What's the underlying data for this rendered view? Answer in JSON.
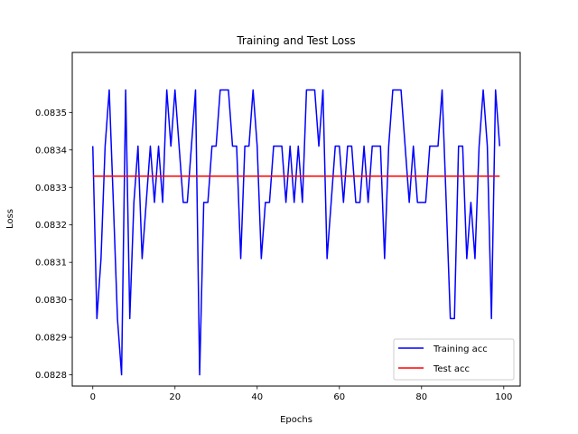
{
  "chart_data": {
    "type": "line",
    "title": "Training and Test Loss",
    "xlabel": "Epochs",
    "ylabel": "Loss",
    "xlim": [
      -5,
      104
    ],
    "ylim": [
      0.08277,
      0.08366
    ],
    "xticks": [
      0,
      20,
      40,
      60,
      80,
      100
    ],
    "xtick_labels": [
      "0",
      "20",
      "40",
      "60",
      "80",
      "100"
    ],
    "yticks": [
      0.0828,
      0.0829,
      0.083,
      0.0831,
      0.0832,
      0.0833,
      0.0834,
      0.0835
    ],
    "ytick_labels": [
      "0.0828",
      "0.0829",
      "0.0830",
      "0.0831",
      "0.0832",
      "0.0833",
      "0.0834",
      "0.0835"
    ],
    "grid": false,
    "legend_position": "lower-right",
    "x": [
      0,
      1,
      2,
      3,
      4,
      5,
      6,
      7,
      8,
      9,
      10,
      11,
      12,
      13,
      14,
      15,
      16,
      17,
      18,
      19,
      20,
      21,
      22,
      23,
      24,
      25,
      26,
      27,
      28,
      29,
      30,
      31,
      32,
      33,
      34,
      35,
      36,
      37,
      38,
      39,
      40,
      41,
      42,
      43,
      44,
      45,
      46,
      47,
      48,
      49,
      50,
      51,
      52,
      53,
      54,
      55,
      56,
      57,
      58,
      59,
      60,
      61,
      62,
      63,
      64,
      65,
      66,
      67,
      68,
      69,
      70,
      71,
      72,
      73,
      74,
      75,
      76,
      77,
      78,
      79,
      80,
      81,
      82,
      83,
      84,
      85,
      86,
      87,
      88,
      89,
      90,
      91,
      92,
      93,
      94,
      95,
      96,
      97,
      98,
      99
    ],
    "series": [
      {
        "name": "Training acc",
        "color": "#0000ff",
        "values": [
          0.08341,
          0.08295,
          0.08311,
          0.08341,
          0.08356,
          0.08326,
          0.08295,
          0.0828,
          0.08356,
          0.08295,
          0.08326,
          0.08341,
          0.08311,
          0.08326,
          0.08341,
          0.08326,
          0.08341,
          0.08326,
          0.08356,
          0.08341,
          0.08356,
          0.08341,
          0.08326,
          0.08326,
          0.08341,
          0.08356,
          0.0828,
          0.08326,
          0.08326,
          0.08341,
          0.08341,
          0.08356,
          0.08356,
          0.08356,
          0.08341,
          0.08341,
          0.08311,
          0.08341,
          0.08341,
          0.08356,
          0.08341,
          0.08311,
          0.08326,
          0.08326,
          0.08341,
          0.08341,
          0.08341,
          0.08326,
          0.08341,
          0.08326,
          0.08341,
          0.08326,
          0.08356,
          0.08356,
          0.08356,
          0.08341,
          0.08356,
          0.08311,
          0.08326,
          0.08341,
          0.08341,
          0.08326,
          0.08341,
          0.08341,
          0.08326,
          0.08326,
          0.08341,
          0.08326,
          0.08341,
          0.08341,
          0.08341,
          0.08311,
          0.08341,
          0.08356,
          0.08356,
          0.08356,
          0.08341,
          0.08326,
          0.08341,
          0.08326,
          0.08326,
          0.08326,
          0.08341,
          0.08341,
          0.08341,
          0.08356,
          0.08326,
          0.08295,
          0.08295,
          0.08341,
          0.08341,
          0.08311,
          0.08326,
          0.08311,
          0.08341,
          0.08356,
          0.08341,
          0.08295,
          0.08356,
          0.08341
        ]
      },
      {
        "name": "Test acc",
        "color": "#ff0000",
        "values": [
          0.08333,
          0.08333,
          0.08333,
          0.08333,
          0.08333,
          0.08333,
          0.08333,
          0.08333,
          0.08333,
          0.08333,
          0.08333,
          0.08333,
          0.08333,
          0.08333,
          0.08333,
          0.08333,
          0.08333,
          0.08333,
          0.08333,
          0.08333,
          0.08333,
          0.08333,
          0.08333,
          0.08333,
          0.08333,
          0.08333,
          0.08333,
          0.08333,
          0.08333,
          0.08333,
          0.08333,
          0.08333,
          0.08333,
          0.08333,
          0.08333,
          0.08333,
          0.08333,
          0.08333,
          0.08333,
          0.08333,
          0.08333,
          0.08333,
          0.08333,
          0.08333,
          0.08333,
          0.08333,
          0.08333,
          0.08333,
          0.08333,
          0.08333,
          0.08333,
          0.08333,
          0.08333,
          0.08333,
          0.08333,
          0.08333,
          0.08333,
          0.08333,
          0.08333,
          0.08333,
          0.08333,
          0.08333,
          0.08333,
          0.08333,
          0.08333,
          0.08333,
          0.08333,
          0.08333,
          0.08333,
          0.08333,
          0.08333,
          0.08333,
          0.08333,
          0.08333,
          0.08333,
          0.08333,
          0.08333,
          0.08333,
          0.08333,
          0.08333,
          0.08333,
          0.08333,
          0.08333,
          0.08333,
          0.08333,
          0.08333,
          0.08333,
          0.08333,
          0.08333,
          0.08333,
          0.08333,
          0.08333,
          0.08333,
          0.08333,
          0.08333,
          0.08333,
          0.08333,
          0.08333,
          0.08333,
          0.08333
        ]
      }
    ]
  }
}
